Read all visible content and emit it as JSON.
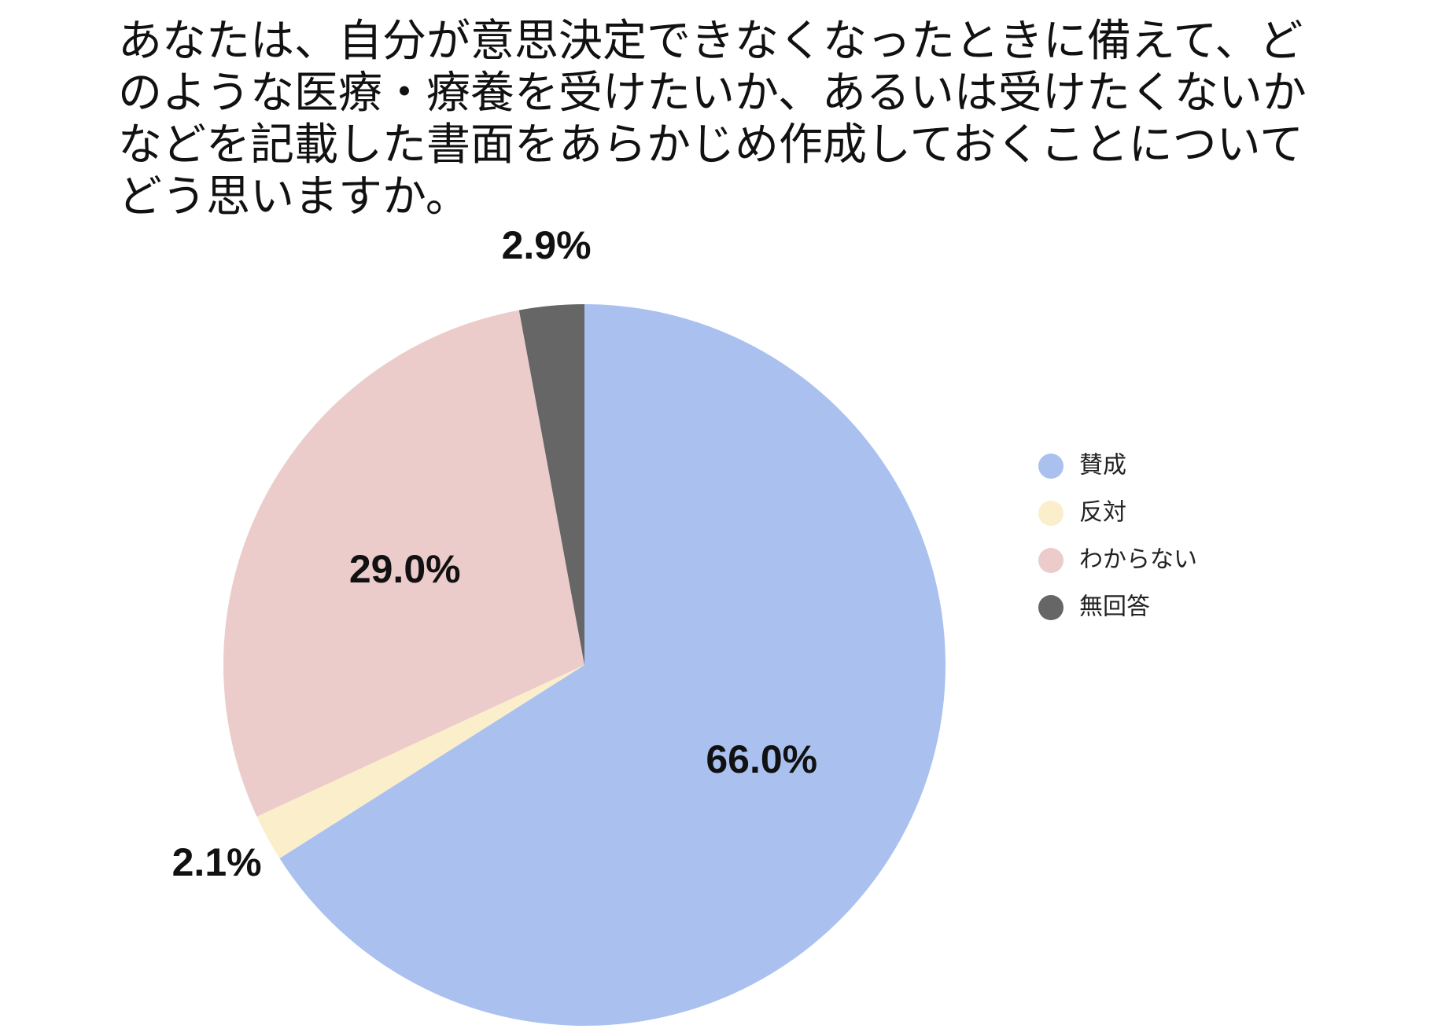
{
  "chart_data": {
    "type": "pie",
    "title": "あなたは、自分が意思決定できなくなったときに備えて、どのような医療・療養を受けたいか、あるいは受けたくないかなどを記載した書面をあらかじめ作成しておくことについてどう思いますか。",
    "categories": [
      "賛成",
      "反対",
      "わからない",
      "無回答"
    ],
    "values": [
      66.0,
      2.1,
      29.0,
      2.9
    ],
    "value_labels": [
      "66.0%",
      "2.1%",
      "29.0%",
      "2.9%"
    ],
    "colors": [
      "#aac1f0",
      "#fbeecb",
      "#eccccb",
      "#666666"
    ],
    "legend": "right"
  }
}
